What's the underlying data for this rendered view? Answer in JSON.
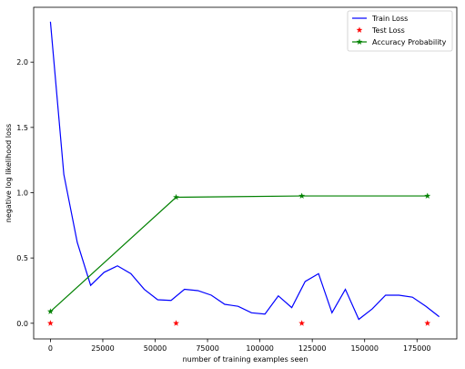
{
  "chart_data": {
    "type": "line",
    "xlabel": "number of training examples seen",
    "ylabel": "negative log likelihood loss",
    "xlim": [
      -8000,
      194000
    ],
    "ylim": [
      -0.12,
      2.42
    ],
    "xticks": [
      0,
      25000,
      50000,
      75000,
      100000,
      125000,
      150000,
      175000
    ],
    "yticks": [
      0.0,
      0.5,
      1.0,
      1.5,
      2.0
    ],
    "xtick_labels": [
      "0",
      "25000",
      "50000",
      "75000",
      "100000",
      "125000",
      "150000",
      "175000"
    ],
    "ytick_labels": [
      "0.0",
      "0.5",
      "1.0",
      "1.5",
      "2.0"
    ],
    "grid": false,
    "legend_position": "top-right",
    "series": [
      {
        "name": "Train Loss",
        "style": "line",
        "color": "#0000ff",
        "x": [
          0,
          6400,
          12800,
          19200,
          25600,
          32000,
          38400,
          44800,
          51200,
          57600,
          64000,
          70400,
          76800,
          83200,
          89600,
          96000,
          102400,
          108800,
          115200,
          121600,
          128000,
          134400,
          140800,
          147200,
          153600,
          160000,
          166400,
          172800,
          179200,
          185600
        ],
        "y": [
          2.31,
          1.14,
          0.62,
          0.29,
          0.39,
          0.44,
          0.38,
          0.26,
          0.18,
          0.175,
          0.26,
          0.25,
          0.215,
          0.145,
          0.13,
          0.08,
          0.07,
          0.21,
          0.12,
          0.32,
          0.38,
          0.08,
          0.26,
          0.03,
          0.11,
          0.215,
          0.215,
          0.2,
          0.13,
          0.05
        ]
      },
      {
        "name": "Test Loss",
        "style": "markers",
        "color": "#ff0000",
        "x": [
          0,
          60000,
          120000,
          180000
        ],
        "y": [
          0.0,
          0.0,
          0.0,
          0.0
        ]
      },
      {
        "name": "Accuracy Probability",
        "style": "line-markers",
        "color": "#008000",
        "x": [
          0,
          60000,
          120000,
          180000
        ],
        "y": [
          0.09,
          0.965,
          0.975,
          0.975
        ]
      }
    ]
  }
}
